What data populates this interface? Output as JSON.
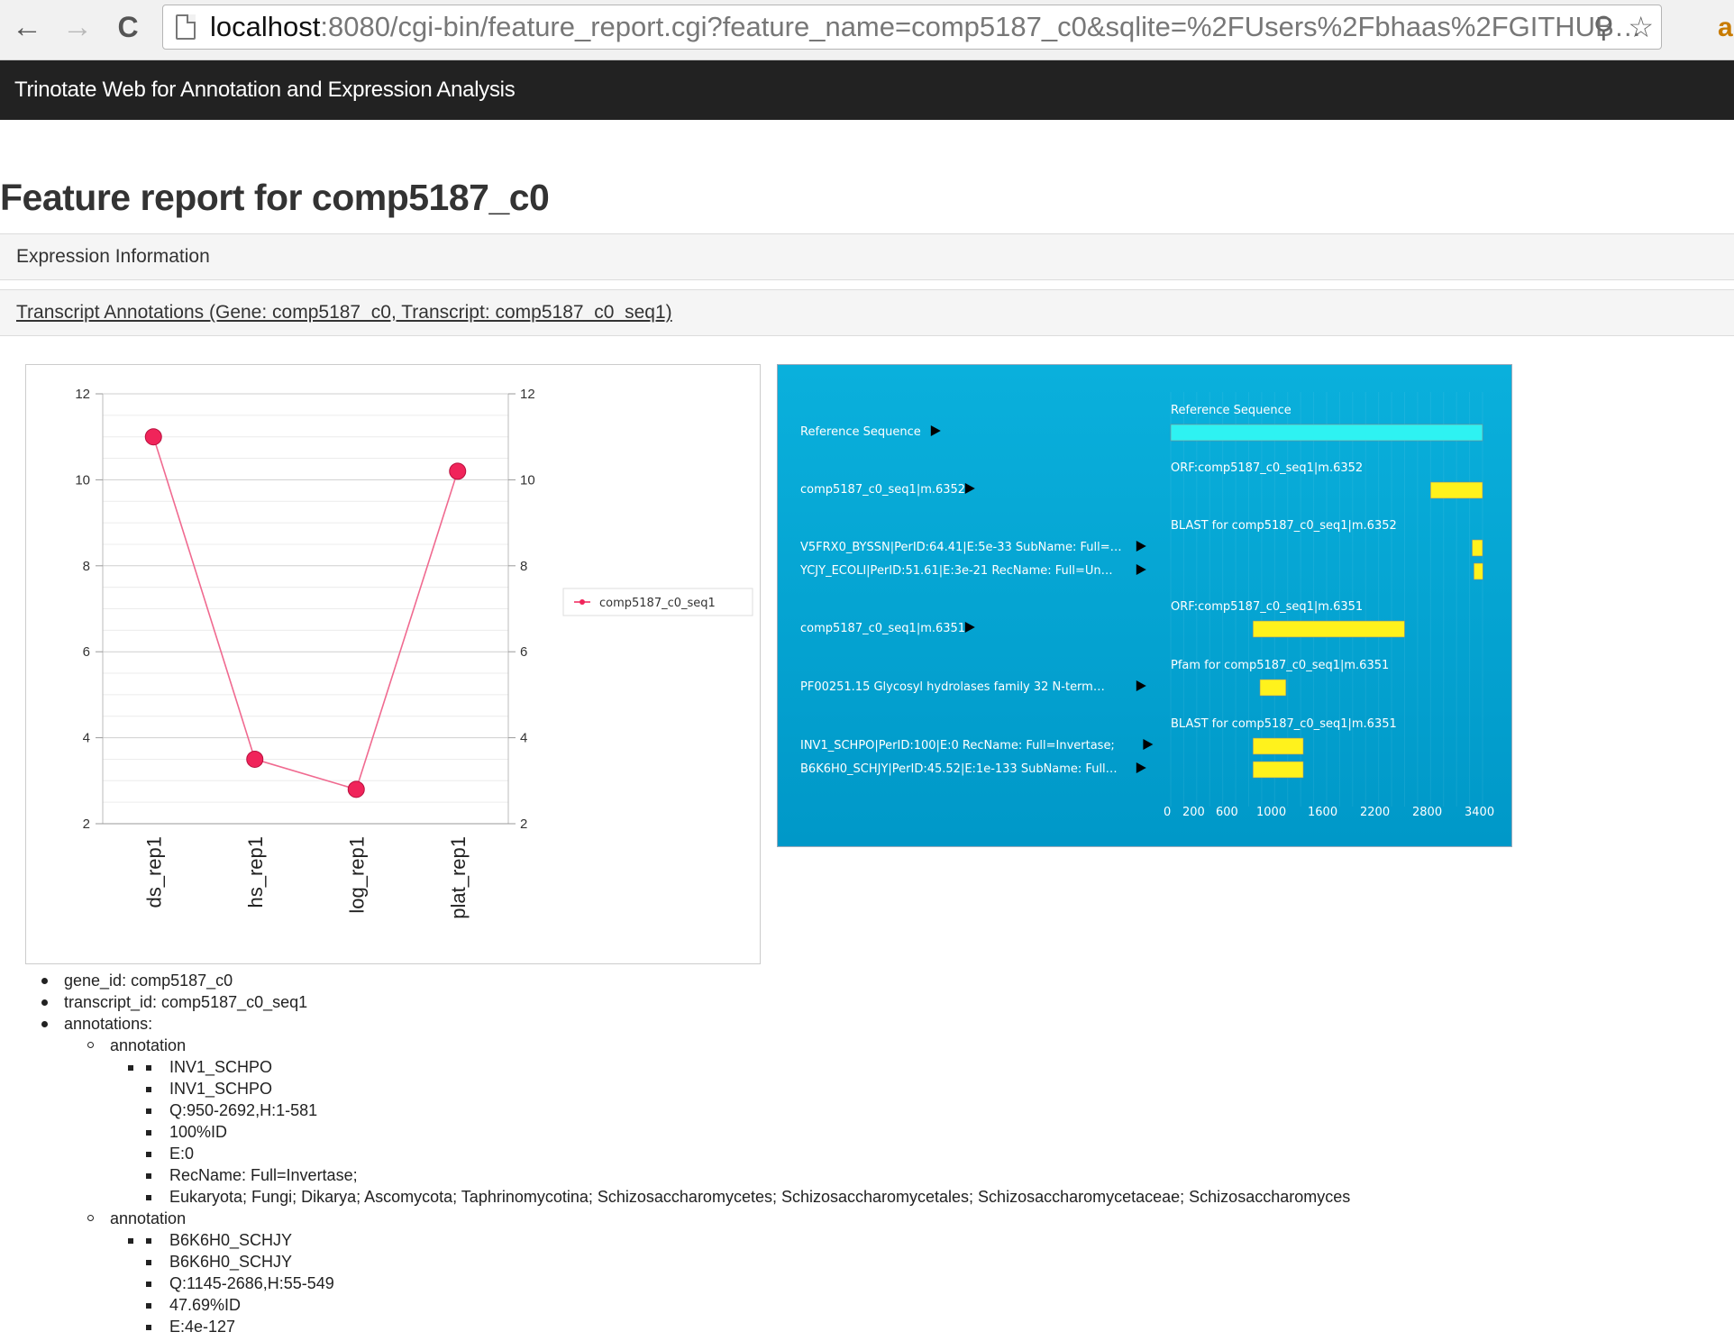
{
  "browser": {
    "url_host": "localhost",
    "url_rest": ":8080/cgi-bin/feature_report.cgi?feature_name=comp5187_c0&sqlite=%2FUsers%2Fbhaas%2FGITHUB…",
    "back_glyph": "←",
    "forward_glyph": "→",
    "reload_glyph": "C",
    "search_glyph": "⚲",
    "star_glyph": "☆",
    "extension_letter": "a"
  },
  "app": {
    "brand": "Trinotate Web for Annotation and Expression Analysis"
  },
  "page": {
    "title": "Feature report for comp5187_c0"
  },
  "panels": {
    "expression": "Expression Information",
    "annotations": "Transcript Annotations (Gene: comp5187_c0, Transcript: comp5187_c0_seq1)"
  },
  "chart_data": {
    "type": "line",
    "categories": [
      "ds_rep1",
      "hs_rep1",
      "log_rep1",
      "plat_rep1"
    ],
    "series": [
      {
        "name": "comp5187_c0_seq1",
        "values": [
          11.0,
          3.5,
          2.8,
          10.2
        ],
        "color": "#f0245a"
      }
    ],
    "ylim": [
      2,
      12
    ],
    "yticks": [
      "2",
      "4",
      "6",
      "8",
      "10",
      "12"
    ],
    "grid": true,
    "legend": "right"
  },
  "tracks": {
    "axis_labels": [
      "0",
      "200",
      "600",
      "1000",
      "1600",
      "2200",
      "2800",
      "3400"
    ],
    "xmax": 3600,
    "rows": [
      {
        "group": "Reference Sequence",
        "label": "Reference Sequence",
        "color": "#2ef2f2",
        "start": 0,
        "end": 3600,
        "thin": false
      },
      {
        "group": "ORF:comp5187_c0_seq1|m.6352",
        "label": "comp5187_c0_seq1|m.6352",
        "color": "#fff21c",
        "start": 3000,
        "end": 3600,
        "thin": false
      },
      {
        "group": "BLAST for comp5187_c0_seq1|m.6352",
        "label": "V5FRX0_BYSSN|PerID:64.41|E:5e-33 SubName: Full=…",
        "color": "#fff21c",
        "start": 3480,
        "end": 3600,
        "thin": true
      },
      {
        "group": "",
        "label": "YCJY_ECOLI|PerID:51.61|E:3e-21 RecName: Full=Un…",
        "color": "#fff21c",
        "start": 3500,
        "end": 3600,
        "thin": true
      },
      {
        "group": "ORF:comp5187_c0_seq1|m.6351",
        "label": "comp5187_c0_seq1|m.6351",
        "color": "#fff21c",
        "start": 950,
        "end": 2700,
        "thin": false
      },
      {
        "group": "Pfam for comp5187_c0_seq1|m.6351",
        "label": "PF00251.15 Glycosyl hydrolases family 32 N-term…",
        "color": "#fff21c",
        "start": 1030,
        "end": 1330,
        "thin": false
      },
      {
        "group": "BLAST for comp5187_c0_seq1|m.6351",
        "label": "INV1_SCHPO|PerID:100|E:0 RecName: Full=Invertase;",
        "color": "#fff21c",
        "start": 950,
        "end": 1530,
        "thin": false
      },
      {
        "group": "",
        "label": "B6K6H0_SCHJY|PerID:45.52|E:1e-133 SubName: Full…",
        "color": "#fff21c",
        "start": 950,
        "end": 1530,
        "thin": false
      }
    ]
  },
  "details": {
    "gene_id": "gene_id: comp5187_c0",
    "transcript_id": "transcript_id: comp5187_c0_seq1",
    "annotations_label": "annotations:",
    "annotation_label": "annotation",
    "annotation_1": [
      "INV1_SCHPO",
      "INV1_SCHPO",
      "Q:950-2692,H:1-581",
      "100%ID",
      "E:0",
      "RecName: Full=Invertase;",
      "Eukaryota; Fungi; Dikarya; Ascomycota; Taphrinomycotina; Schizosaccharomycetes; Schizosaccharomycetales; Schizosaccharomycetaceae; Schizosaccharomyces"
    ],
    "annotation_2": [
      "B6K6H0_SCHJY",
      "B6K6H0_SCHJY",
      "Q:1145-2686,H:55-549",
      "47.69%ID",
      "E:4e-127"
    ]
  }
}
